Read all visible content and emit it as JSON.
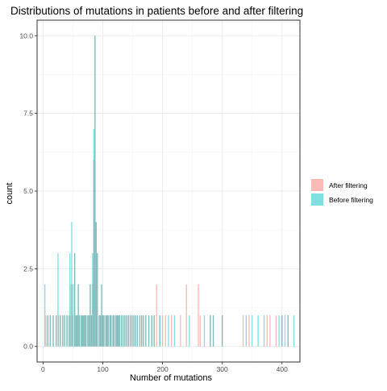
{
  "chart_data": {
    "type": "bar",
    "title": "Distributions of mutations in patients before and after filtering",
    "xlabel": "Number of mutations",
    "ylabel": "count",
    "xlim": [
      -10,
      430
    ],
    "ylim": [
      -0.5,
      10.5
    ],
    "x_ticks": [
      0,
      100,
      200,
      300,
      400
    ],
    "x_tick_labels": [
      "0",
      "100",
      "200",
      "300",
      "400"
    ],
    "y_ticks": [
      0,
      2.5,
      5,
      7.5,
      10
    ],
    "y_tick_labels": [
      "0.0",
      "2.5",
      "5.0",
      "7.5",
      "10.0"
    ],
    "grid": true,
    "legend_position": "right",
    "bin_width": 1.8,
    "alpha": 0.5,
    "colors": {
      "After filtering": "#f8766d",
      "Before filtering": "#00bfc4",
      "overlap": "#7cbcb7"
    },
    "series": [
      {
        "name": "After filtering",
        "color": "#f8766d",
        "bins": [
          [
            5,
            1
          ],
          [
            8,
            1
          ],
          [
            12,
            1
          ],
          [
            17,
            1
          ],
          [
            22,
            1
          ],
          [
            26,
            1
          ],
          [
            29,
            1
          ],
          [
            33,
            1
          ],
          [
            36,
            1
          ],
          [
            40,
            1
          ],
          [
            45,
            1
          ],
          [
            47,
            2
          ],
          [
            50,
            1
          ],
          [
            53,
            3
          ],
          [
            55,
            1
          ],
          [
            57,
            1
          ],
          [
            59,
            2
          ],
          [
            61,
            1
          ],
          [
            64,
            1
          ],
          [
            66,
            1
          ],
          [
            68,
            1
          ],
          [
            70,
            1
          ],
          [
            72,
            1
          ],
          [
            75,
            1
          ],
          [
            77,
            1
          ],
          [
            79,
            2
          ],
          [
            81,
            1
          ],
          [
            83,
            2
          ],
          [
            85,
            6
          ],
          [
            87,
            10
          ],
          [
            89,
            4
          ],
          [
            91,
            3
          ],
          [
            94,
            1
          ],
          [
            96,
            1
          ],
          [
            98,
            2
          ],
          [
            100,
            1
          ],
          [
            102,
            1
          ],
          [
            105,
            1
          ],
          [
            107,
            1
          ],
          [
            109,
            1
          ],
          [
            112,
            1
          ],
          [
            114,
            1
          ],
          [
            117,
            1
          ],
          [
            119,
            1
          ],
          [
            122,
            1
          ],
          [
            124,
            1
          ],
          [
            126,
            1
          ],
          [
            128,
            1
          ],
          [
            131,
            1
          ],
          [
            134,
            1
          ],
          [
            137,
            1
          ],
          [
            140,
            1
          ],
          [
            143,
            1
          ],
          [
            146,
            1
          ],
          [
            149,
            1
          ],
          [
            152,
            1
          ],
          [
            155,
            1
          ],
          [
            158,
            1
          ],
          [
            162,
            1
          ],
          [
            165,
            1
          ],
          [
            168,
            1
          ],
          [
            172,
            1
          ],
          [
            177,
            1
          ],
          [
            182,
            1
          ],
          [
            186,
            1
          ],
          [
            190,
            2
          ],
          [
            195,
            1
          ],
          [
            200,
            1
          ],
          [
            205,
            1
          ],
          [
            215,
            1
          ],
          [
            230,
            1
          ],
          [
            240,
            2
          ],
          [
            260,
            2
          ],
          [
            263,
            1
          ],
          [
            280,
            1
          ],
          [
            285,
            1
          ],
          [
            300,
            1
          ],
          [
            335,
            1
          ],
          [
            345,
            1
          ],
          [
            375,
            1
          ],
          [
            380,
            1
          ],
          [
            390,
            1
          ],
          [
            400,
            1
          ],
          [
            410,
            1
          ]
        ]
      },
      {
        "name": "Before filtering",
        "color": "#00bfc4",
        "bins": [
          [
            3,
            2
          ],
          [
            8,
            1
          ],
          [
            12,
            1
          ],
          [
            17,
            1
          ],
          [
            22,
            1
          ],
          [
            25,
            3
          ],
          [
            29,
            1
          ],
          [
            33,
            1
          ],
          [
            36,
            1
          ],
          [
            40,
            1
          ],
          [
            43,
            1
          ],
          [
            45,
            3
          ],
          [
            48,
            4
          ],
          [
            50,
            2
          ],
          [
            53,
            3
          ],
          [
            55,
            1
          ],
          [
            57,
            1
          ],
          [
            59,
            2
          ],
          [
            61,
            1
          ],
          [
            64,
            1
          ],
          [
            66,
            1
          ],
          [
            68,
            1
          ],
          [
            70,
            1
          ],
          [
            72,
            1
          ],
          [
            75,
            1
          ],
          [
            77,
            1
          ],
          [
            79,
            2
          ],
          [
            81,
            1
          ],
          [
            83,
            3
          ],
          [
            85,
            7
          ],
          [
            87,
            10
          ],
          [
            89,
            4
          ],
          [
            91,
            3
          ],
          [
            94,
            1
          ],
          [
            96,
            1
          ],
          [
            98,
            2
          ],
          [
            100,
            1
          ],
          [
            102,
            1
          ],
          [
            105,
            1
          ],
          [
            107,
            1
          ],
          [
            109,
            1
          ],
          [
            112,
            1
          ],
          [
            114,
            1
          ],
          [
            117,
            1
          ],
          [
            119,
            1
          ],
          [
            122,
            1
          ],
          [
            124,
            1
          ],
          [
            126,
            1
          ],
          [
            128,
            1
          ],
          [
            131,
            1
          ],
          [
            134,
            1
          ],
          [
            137,
            1
          ],
          [
            140,
            1
          ],
          [
            143,
            1
          ],
          [
            146,
            1
          ],
          [
            149,
            1
          ],
          [
            152,
            1
          ],
          [
            155,
            1
          ],
          [
            158,
            1
          ],
          [
            162,
            1
          ],
          [
            165,
            1
          ],
          [
            168,
            1
          ],
          [
            172,
            1
          ],
          [
            177,
            1
          ],
          [
            182,
            1
          ],
          [
            186,
            1
          ],
          [
            196,
            1
          ],
          [
            210,
            1
          ],
          [
            220,
            1
          ],
          [
            245,
            1
          ],
          [
            270,
            1
          ],
          [
            280,
            1
          ],
          [
            285,
            1
          ],
          [
            300,
            1
          ],
          [
            340,
            1
          ],
          [
            350,
            1
          ],
          [
            360,
            1
          ],
          [
            370,
            1
          ],
          [
            395,
            1
          ],
          [
            400,
            1
          ],
          [
            405,
            1
          ],
          [
            410,
            1
          ],
          [
            420,
            1
          ]
        ]
      }
    ]
  }
}
